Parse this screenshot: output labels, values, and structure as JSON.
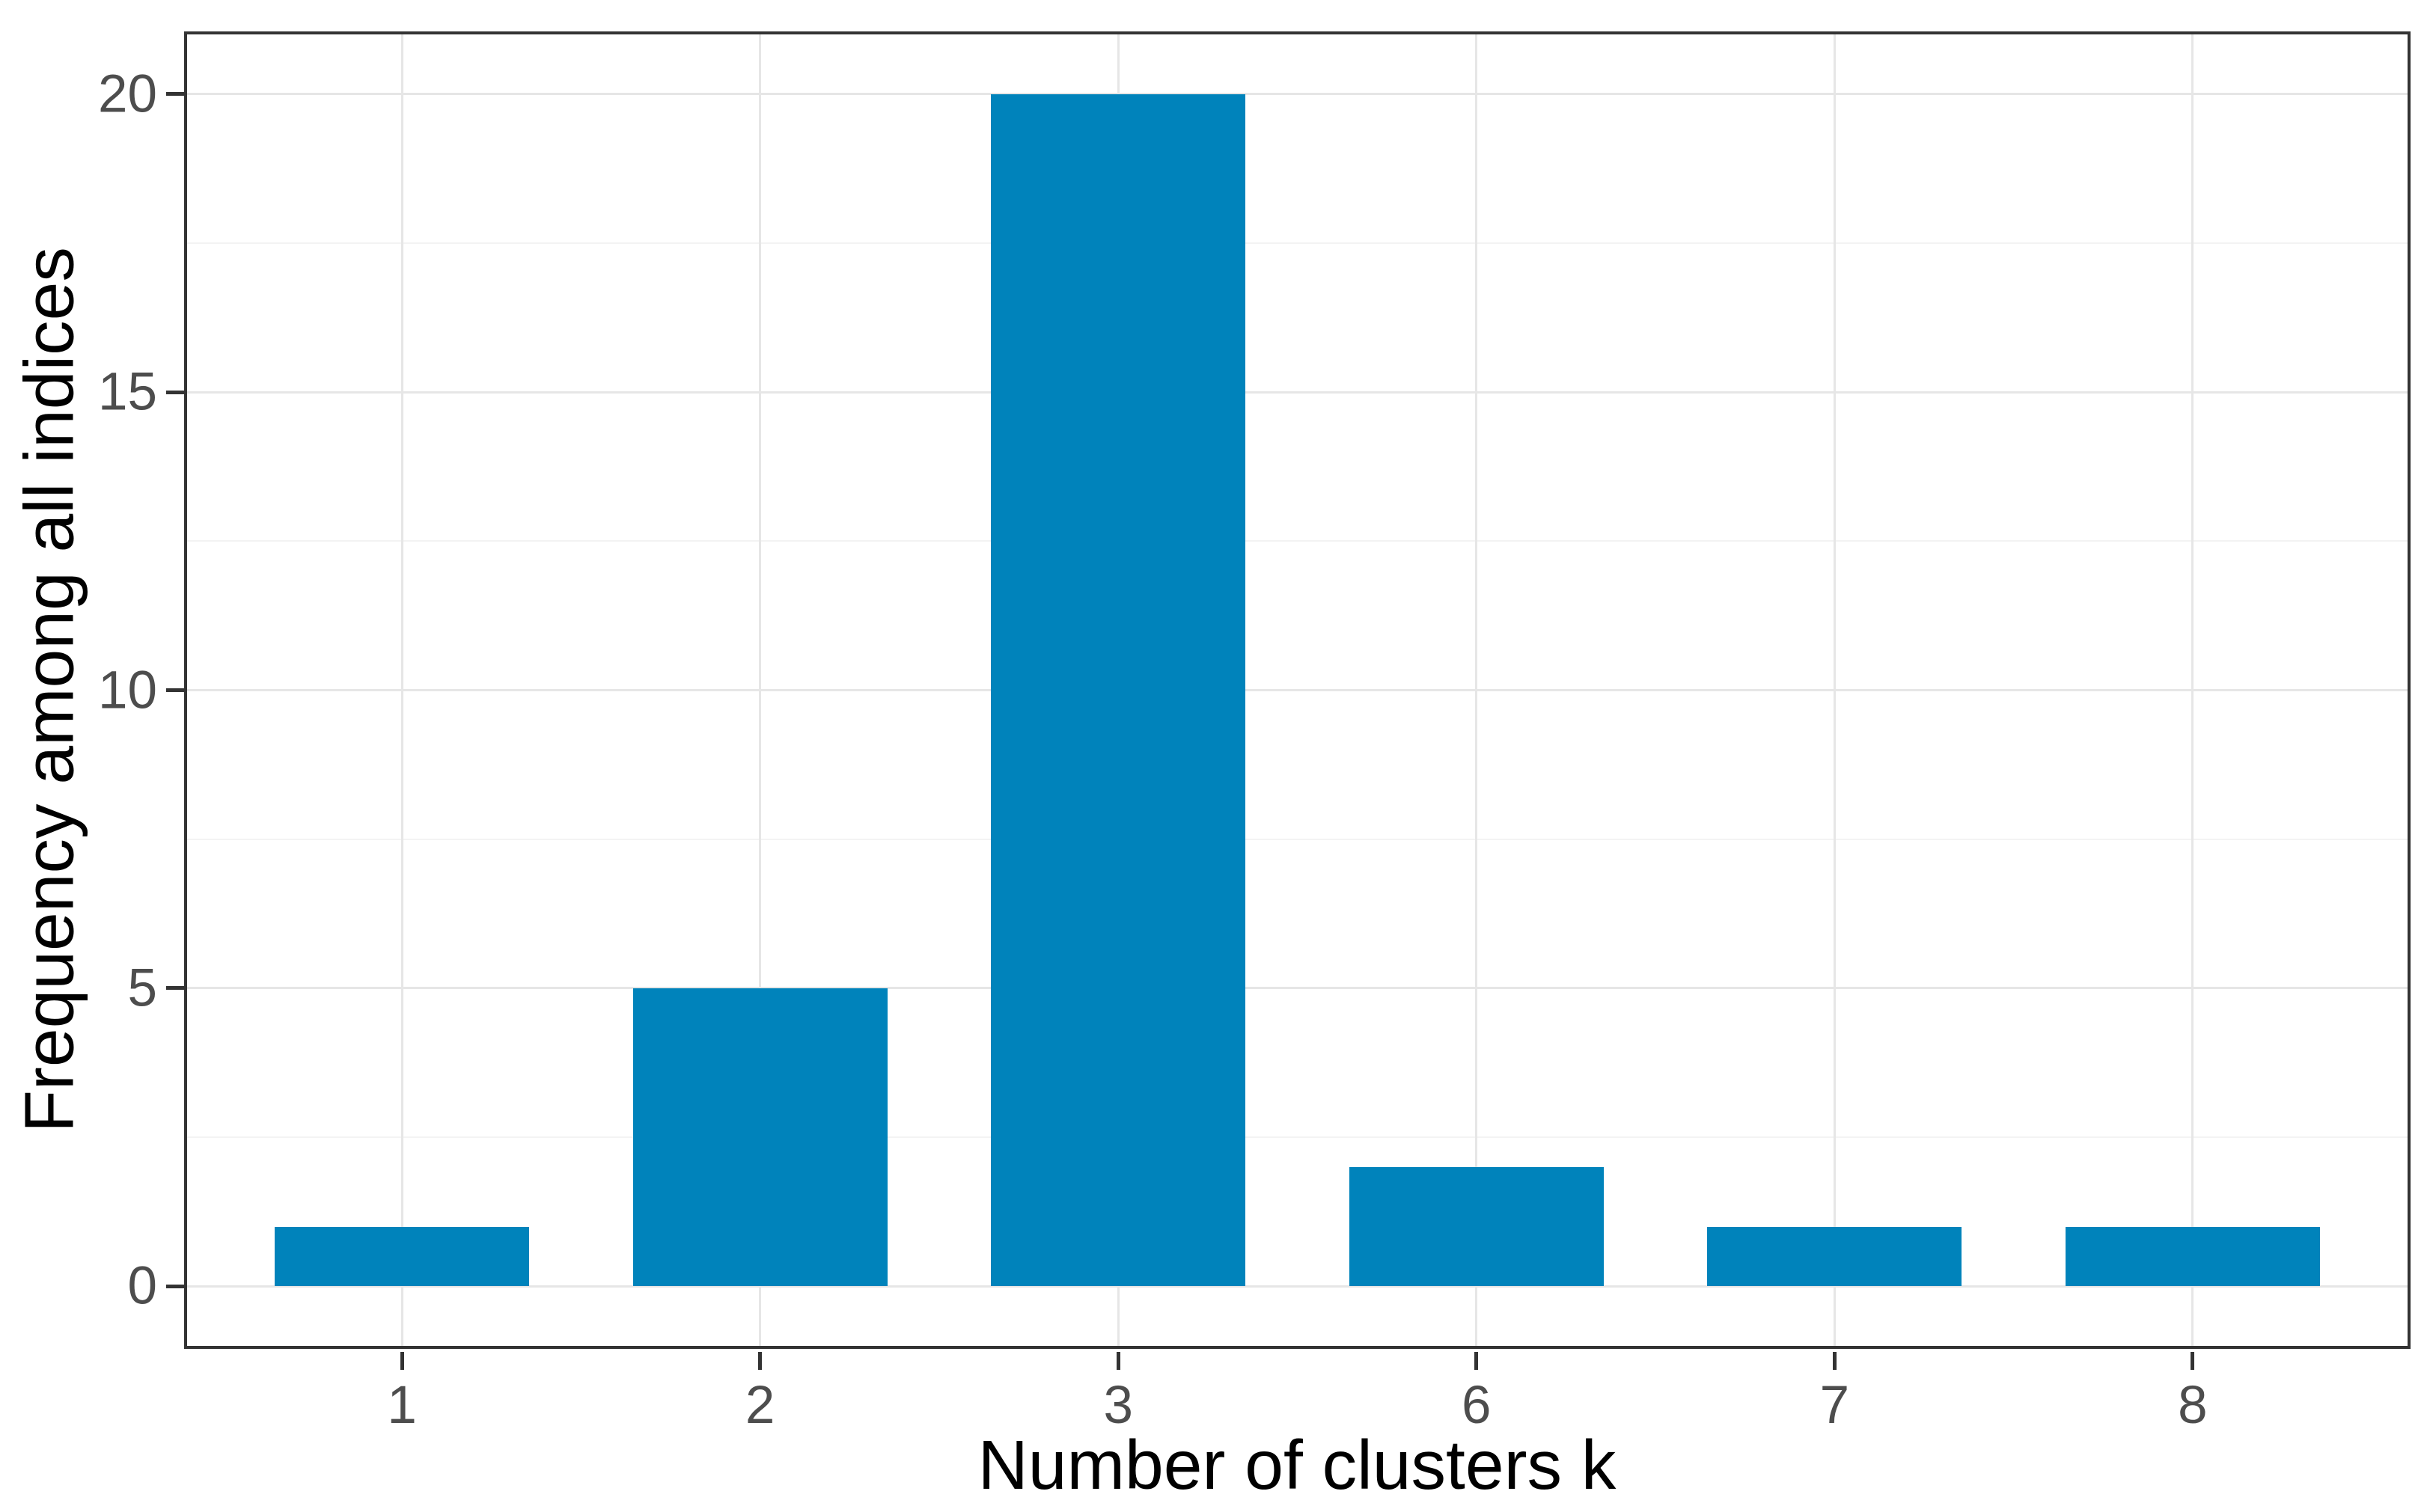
{
  "chart_data": {
    "type": "bar",
    "categories": [
      "1",
      "2",
      "3",
      "6",
      "7",
      "8"
    ],
    "values": [
      1,
      5,
      20,
      2,
      1,
      1
    ],
    "title": "",
    "xlabel": "Number of clusters k",
    "ylabel": "Frequency among all indices",
    "ylim": [
      -1,
      21
    ],
    "y_major_ticks": [
      0,
      5,
      10,
      15,
      20
    ],
    "y_tick_labels": [
      "0",
      "5",
      "10",
      "15",
      "20"
    ],
    "y_minor_gridlines": [
      2.5,
      7.5,
      12.5,
      17.5
    ],
    "x_tick_labels": [
      "1",
      "2",
      "3",
      "6",
      "7",
      "8"
    ],
    "grid": "major-and-minor-horizontal, major-vertical",
    "legend": "none",
    "bar_color": "#0083bb",
    "bar_width_category_units": 0.71
  }
}
